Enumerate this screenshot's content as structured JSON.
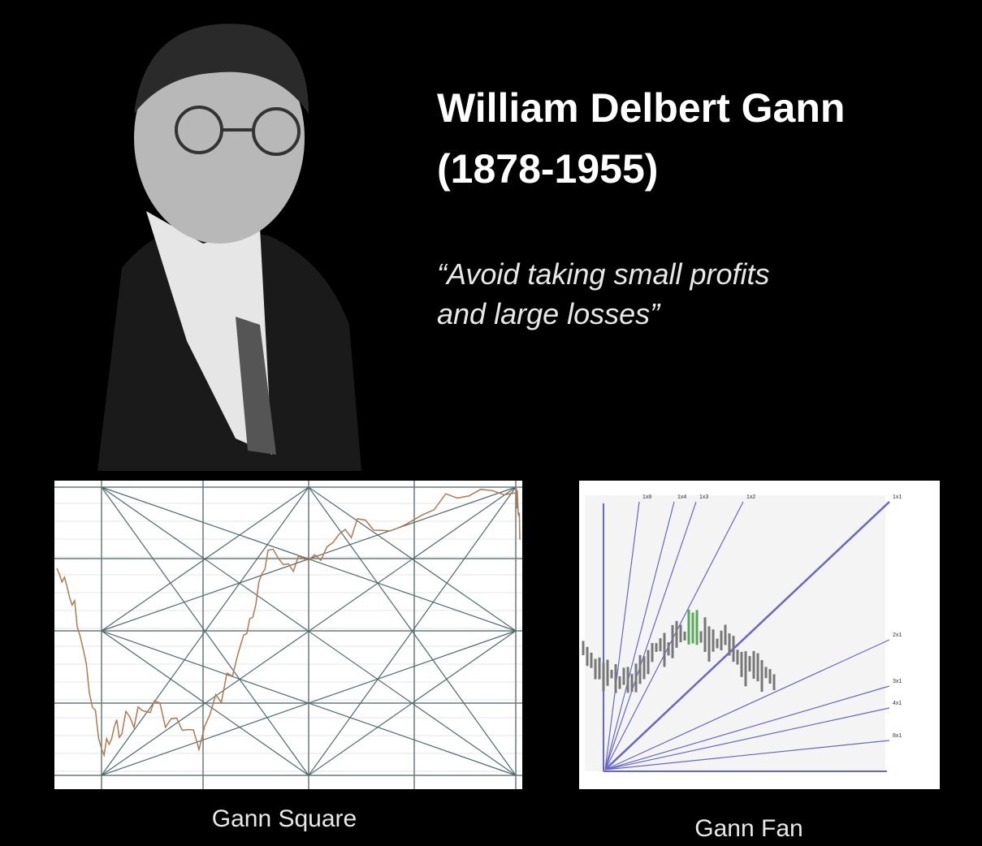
{
  "header": {
    "title": "William Delbert Gann",
    "years": "(1878-1955)"
  },
  "quote": {
    "lines": [
      "“Avoid taking small profits",
      "and large losses”"
    ]
  },
  "figures": [
    {
      "caption": "Gann Square"
    },
    {
      "caption": "Gann Fan",
      "fan_labels": [
        "1x8",
        "1x4",
        "1x3",
        "1x2",
        "1x1",
        "2x1",
        "3x1",
        "4x1",
        "8x1"
      ]
    }
  ]
}
